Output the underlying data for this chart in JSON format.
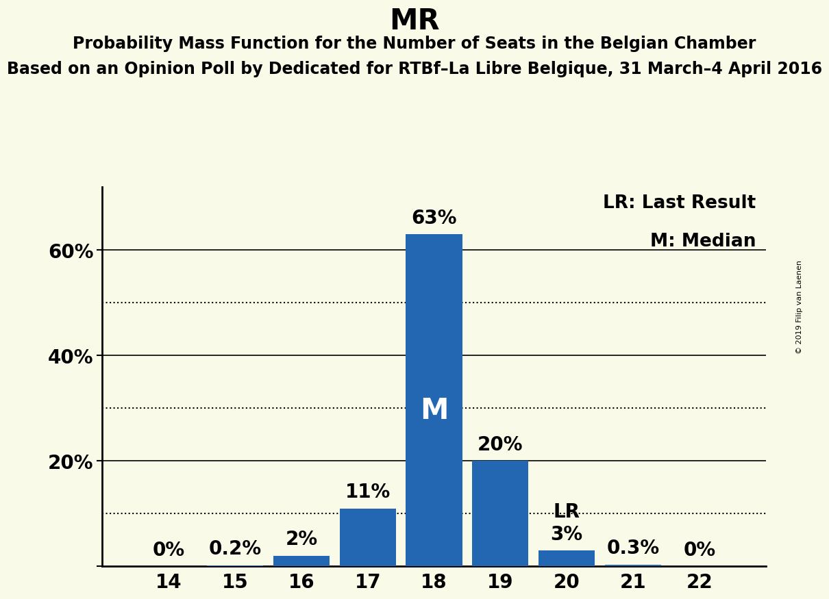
{
  "title": "MR",
  "subtitle1": "Probability Mass Function for the Number of Seats in the Belgian Chamber",
  "subtitle2": "Based on an Opinion Poll by Dedicated for RTBf–La Libre Belgique, 31 March–4 April 2016",
  "copyright": "© 2019 Filip van Laenen",
  "seats": [
    14,
    15,
    16,
    17,
    18,
    19,
    20,
    21,
    22
  ],
  "probabilities": [
    0.0,
    0.002,
    0.02,
    0.11,
    0.63,
    0.2,
    0.03,
    0.003,
    0.0
  ],
  "prob_labels": [
    "0%",
    "0.2%",
    "2%",
    "11%",
    "63%",
    "20%",
    "3%",
    "0.3%",
    "0%"
  ],
  "bar_color": "#2367b2",
  "median_seat": 18,
  "lr_seat": 20,
  "background_color": "#fafae8",
  "yticks": [
    0.0,
    0.2,
    0.4,
    0.6
  ],
  "ytick_labels": [
    "",
    "20%",
    "40%",
    "60%"
  ],
  "dotted_gridlines": [
    0.1,
    0.3,
    0.5
  ],
  "solid_gridlines": [
    0.2,
    0.4,
    0.6
  ],
  "legend_lr": "LR: Last Result",
  "legend_m": "M: Median",
  "title_fontsize": 30,
  "subtitle1_fontsize": 17,
  "subtitle2_fontsize": 17,
  "axis_fontsize": 20,
  "bar_label_fontsize": 20,
  "median_label_fontsize": 30,
  "lr_label_fontsize": 20,
  "legend_fontsize": 19,
  "copyright_fontsize": 8
}
